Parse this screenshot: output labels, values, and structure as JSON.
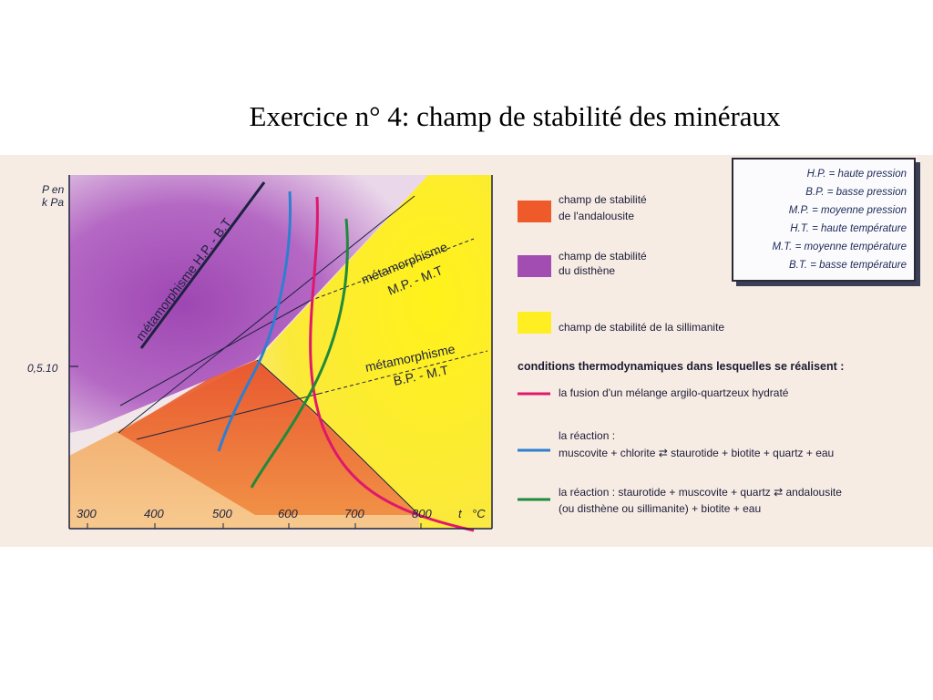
{
  "title": "Exercice n° 4: champ de stabilité des minéraux",
  "colors": {
    "andalousite": "#ef5a2a",
    "disthene": "#a24db2",
    "sillimanite": "#ffee22",
    "fusion_line": "#e0186c",
    "muscovite_chlorite_line": "#2d7fd0",
    "staurotide_muscovite_line": "#1f8a3c",
    "axis": "#1d2240"
  },
  "diagram": {
    "y_axis_label_line1": "P en",
    "y_axis_label_line2": "k Pa",
    "y_tick_label": "0,5.10",
    "x_ticks": [
      "300",
      "400",
      "500",
      "600",
      "700",
      "800"
    ],
    "x_unit_t": "t",
    "x_unit_c": "°C",
    "label_hp_bt": "métamorphisme H.P. - B.T",
    "label_mp_mt_line1": "métamorphisme",
    "label_mp_mt_line2": "M.P. - M.T",
    "label_bp_mt_line1": "métamorphisme",
    "label_bp_mt_line2": "B.P. - M.T"
  },
  "abbreviations": [
    "H.P. = haute pression",
    "B.P. = basse pression",
    "M.P. = moyenne pression",
    "H.T. = haute température",
    "M.T. = moyenne température",
    "B.T. = basse température"
  ],
  "legend": {
    "andalousite_line1": "champ de stabilité",
    "andalousite_line2": "de l'andalousite",
    "disthene_line1": "champ de stabilité",
    "disthene_line2": "du disthène",
    "sillimanite": "champ de stabilité de la sillimanite",
    "conditions_heading": "conditions thermodynamiques dans lesquelles se réalisent :",
    "fusion": "la fusion d'un mélange argilo-quartzeux hydraté",
    "reaction1_line1": "la réaction :",
    "reaction1_line2": "muscovite +  chlorite ⇄ staurotide +  biotite +  quartz +  eau",
    "reaction2_line1": "la réaction : staurotide +  muscovite +  quartz ⇄ andalousite",
    "reaction2_line2": "(ou disthène ou sillimanite) +  biotite +  eau"
  }
}
